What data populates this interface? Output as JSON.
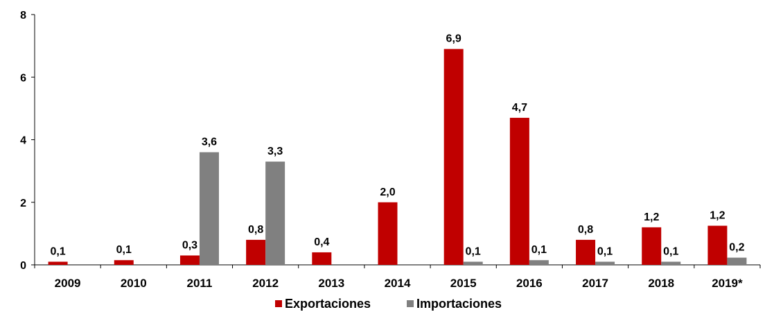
{
  "chart_data": {
    "type": "bar",
    "categories": [
      "2009",
      "2010",
      "2011",
      "2012",
      "2013",
      "2014",
      "2015",
      "2016",
      "2017",
      "2018",
      "2019*"
    ],
    "series": [
      {
        "name": "Exportaciones",
        "color": "#C00000",
        "values": [
          0.1,
          0.15,
          0.3,
          0.8,
          0.4,
          2.0,
          6.9,
          4.7,
          0.8,
          1.2,
          1.25
        ],
        "labels": [
          "0,1",
          "0,1",
          "0,3",
          "0,8",
          "0,4",
          "2,0",
          "6,9",
          "4,7",
          "0,8",
          "1,2",
          "1,2"
        ]
      },
      {
        "name": "Importaciones",
        "color": "#808080",
        "values": [
          null,
          null,
          3.6,
          3.3,
          null,
          null,
          0.1,
          0.15,
          0.1,
          0.1,
          0.23
        ],
        "labels": [
          null,
          null,
          "3,6",
          "3,3",
          null,
          null,
          "0,1",
          "0,1",
          "0,1",
          "0,1",
          "0,2"
        ]
      }
    ],
    "ylim": [
      0,
      8
    ],
    "yticks": [
      0,
      2,
      4,
      6,
      8
    ],
    "ytick_labels": [
      "0",
      "2",
      "4",
      "6",
      "8"
    ],
    "grid": false,
    "legend_position": "bottom"
  }
}
